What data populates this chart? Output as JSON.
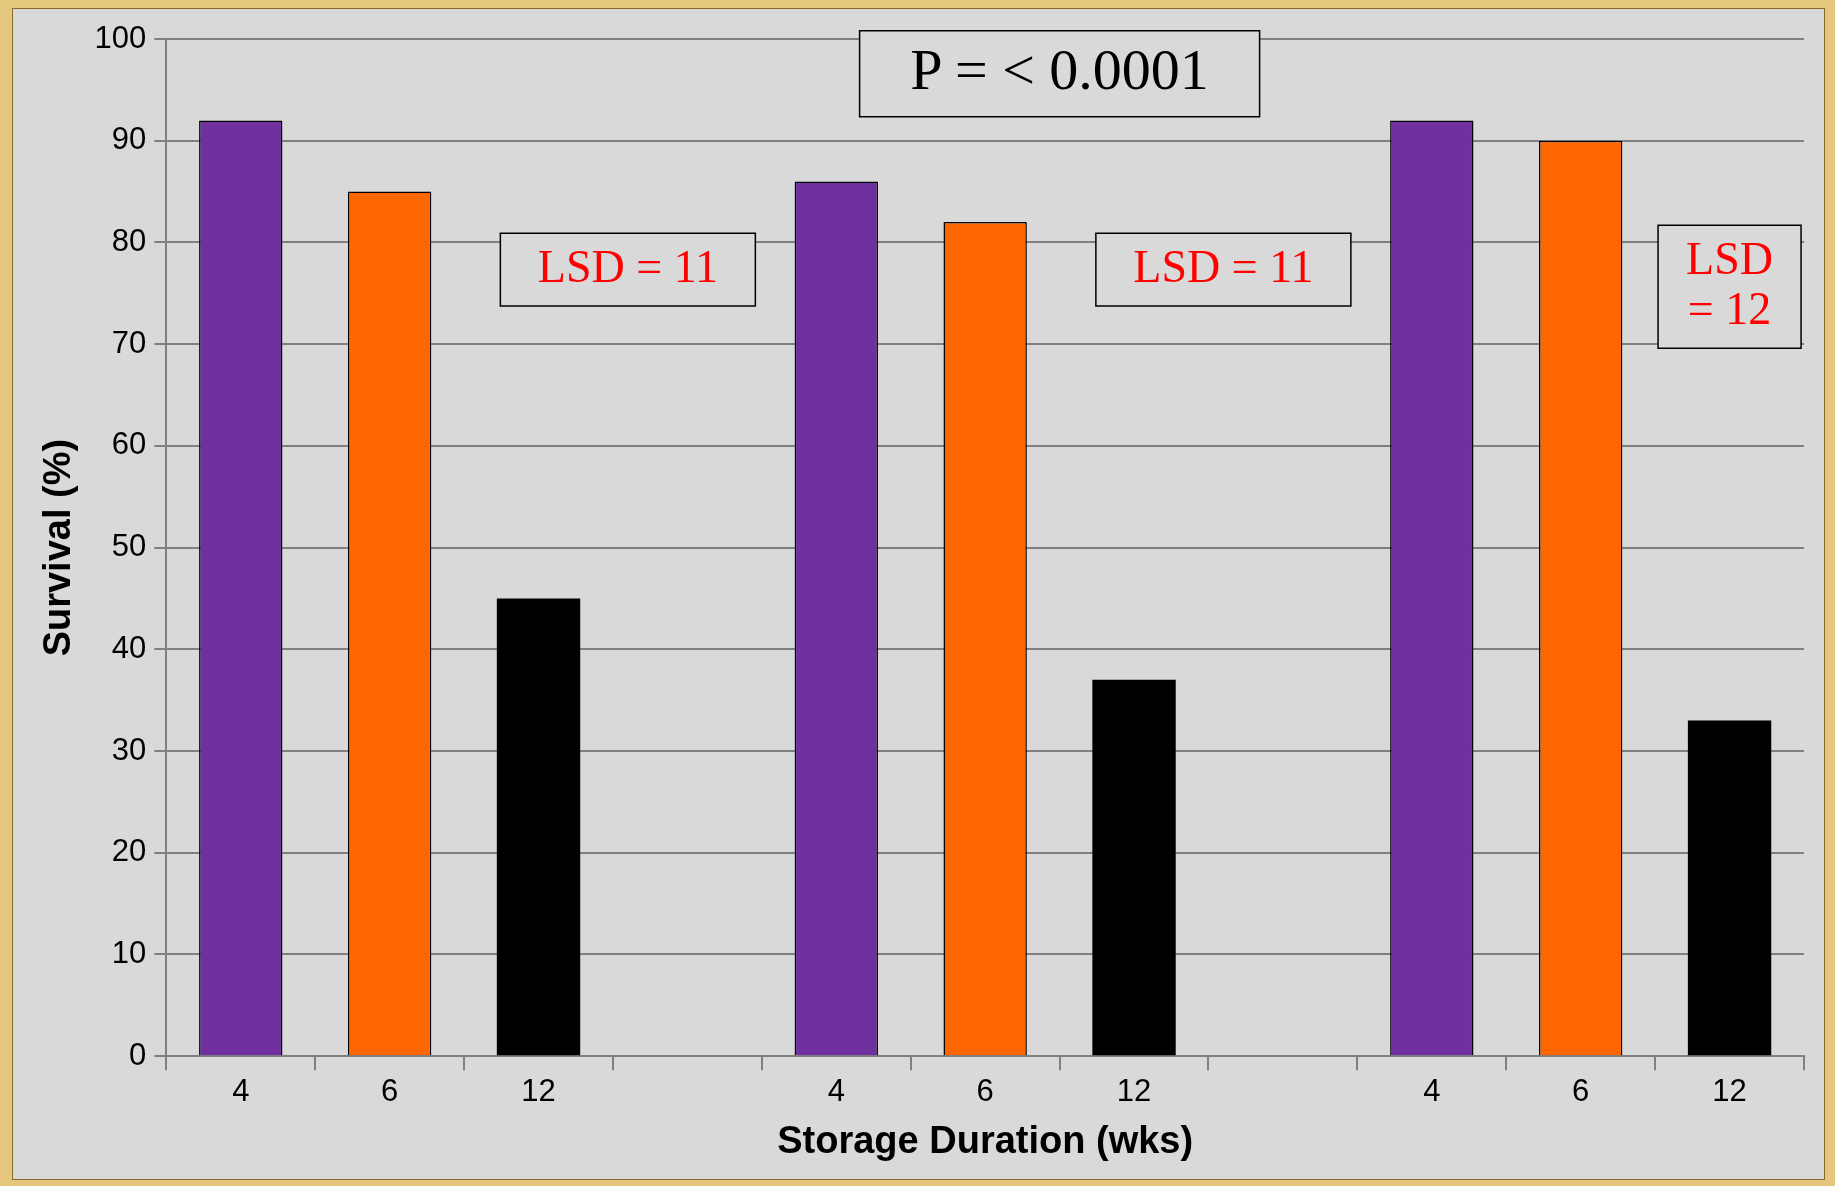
{
  "chart_data": {
    "type": "bar",
    "xlabel": "Storage Duration (wks)",
    "ylabel": "Survival (%)",
    "categories": [
      "4",
      "6",
      "12",
      null,
      "4",
      "6",
      "12",
      null,
      "4",
      "6",
      "12"
    ],
    "values": [
      92,
      85,
      45,
      null,
      86,
      82,
      37,
      null,
      92,
      90,
      33
    ],
    "colors": [
      "#7030a0",
      "#ff6600",
      "#000000",
      null,
      "#7030a0",
      "#ff6600",
      "#000000",
      null,
      "#7030a0",
      "#ff6600",
      "#000000"
    ],
    "ylim": [
      0,
      100
    ],
    "yticks": [
      0,
      10,
      20,
      30,
      40,
      50,
      60,
      70,
      80,
      90,
      100
    ],
    "grid": "y",
    "legend": false,
    "annotations": [
      "P = < 0.0001",
      "LSD = 11",
      "LSD = 11",
      "LSD = 12"
    ]
  }
}
